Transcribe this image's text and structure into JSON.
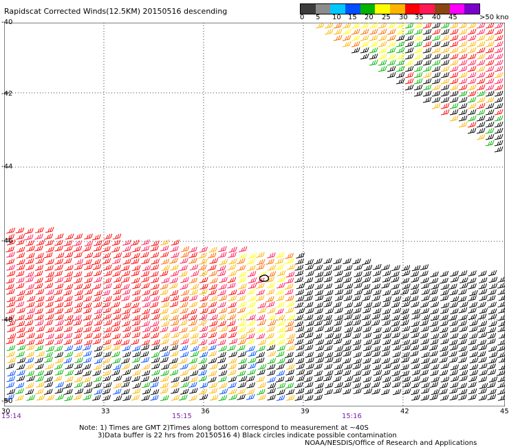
{
  "title": "Rapidscat Corrected Winds(12.5KM) 20150516 descending",
  "colorbar": {
    "colors": [
      "#3c3c3c",
      "#8c8c8c",
      "#00c8ff",
      "#0050ff",
      "#00b400",
      "#ffff00",
      "#ffb400",
      "#ff0000",
      "#ff1a55",
      "#8b4513",
      "#ff00ff",
      "#7c00cc"
    ],
    "labels": [
      "0",
      "5",
      "10",
      "15",
      "20",
      "25",
      "30",
      "35",
      "40",
      "45",
      ">50"
    ],
    "units": "knots"
  },
  "y_axis": {
    "labels": [
      "-40",
      "-42",
      "-44",
      "-46",
      "-48",
      "-50"
    ]
  },
  "x_axis": {
    "labels": [
      "30",
      "33",
      "36",
      "39",
      "42",
      "45"
    ]
  },
  "time_labels": [
    "15:14",
    "15:15",
    "15:16"
  ],
  "notes": [
    "Note: 1) Times are GMT 2)Times along bottom correspond to measurement at ~40S",
    "3)Data buffer is 22 hrs from 20150516 4) Black circles indicate possible contamination"
  ],
  "credit": "NOAA/NESDIS/Office of Research and Applications"
}
